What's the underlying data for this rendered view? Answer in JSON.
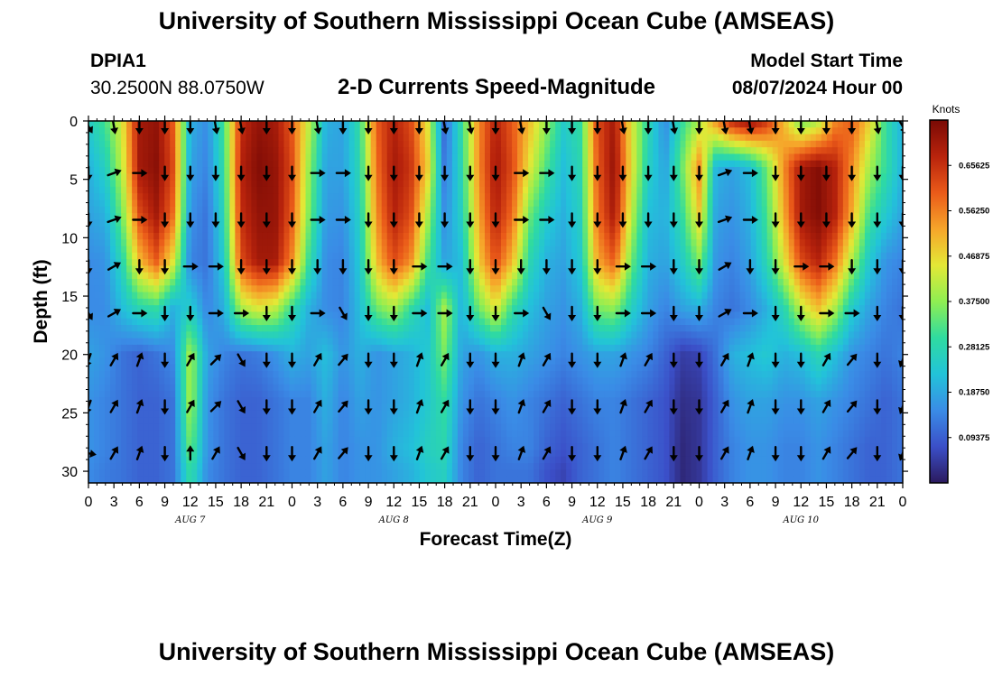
{
  "header": {
    "title_top": "University of Southern Mississippi Ocean Cube (AMSEAS)",
    "title_bottom": "University of Southern Mississippi Ocean Cube (AMSEAS)",
    "station_id": "DPIA1",
    "station_coords": "30.2500N  88.0750W",
    "plot_title": "2-D Currents Speed-Magnitude",
    "model_start_label": "Model Start Time",
    "model_start_value": "08/07/2024 Hour 00"
  },
  "colors": {
    "ramp": [
      "#2b1a5e",
      "#3b4fc8",
      "#3a8ce6",
      "#22c3d9",
      "#2fdba0",
      "#8fee52",
      "#e3e836",
      "#f6a52a",
      "#ea5a19",
      "#b8230c",
      "#7a0a05"
    ],
    "arrow": "#000000"
  },
  "chart_data": {
    "type": "heatmap",
    "title": "2-D Currents Speed-Magnitude",
    "xlabel": "Forecast Time(Z)",
    "ylabel": "Depth (ft)",
    "x_ticks": [
      "0",
      "3",
      "6",
      "9",
      "12",
      "15",
      "18",
      "21",
      "0",
      "3",
      "6",
      "9",
      "12",
      "15",
      "18",
      "21",
      "0",
      "3",
      "6",
      "9",
      "12",
      "15",
      "18",
      "21",
      "0",
      "3",
      "6",
      "9",
      "12",
      "15",
      "18",
      "21",
      "0"
    ],
    "day_labels": [
      "AUG 7",
      "AUG 8",
      "AUG 9",
      "AUG 10"
    ],
    "xlim_hours": [
      0,
      96
    ],
    "y_ticks": [
      0,
      5,
      10,
      15,
      20,
      25,
      30
    ],
    "ylim": [
      0,
      31
    ],
    "colorbar": {
      "unit": "Knots",
      "ticks": [
        "0.65625",
        "0.56250",
        "0.46875",
        "0.37500",
        "0.28125",
        "0.18750",
        "0.09375"
      ],
      "range": [
        0,
        0.75
      ]
    },
    "depth_levels": [
      0,
      4,
      8,
      12,
      16,
      20,
      24,
      28,
      30
    ],
    "speed_knots": [
      [
        0.25,
        0.32,
        0.45,
        0.7,
        0.72,
        0.6,
        0.2,
        0.15,
        0.32,
        0.66,
        0.72,
        0.7,
        0.6,
        0.42,
        0.2,
        0.18,
        0.3,
        0.6,
        0.68,
        0.62,
        0.45,
        0.1,
        0.3,
        0.55,
        0.68,
        0.6,
        0.5,
        0.38,
        0.25,
        0.3,
        0.62,
        0.7,
        0.45,
        0.28,
        0.15,
        0.3,
        0.4,
        0.55,
        0.68,
        0.72,
        0.65,
        0.5,
        0.35,
        0.4,
        0.55,
        0.6,
        0.48,
        0.3,
        0.2
      ],
      [
        0.2,
        0.26,
        0.42,
        0.7,
        0.73,
        0.62,
        0.18,
        0.14,
        0.3,
        0.68,
        0.74,
        0.72,
        0.62,
        0.38,
        0.18,
        0.18,
        0.28,
        0.58,
        0.7,
        0.65,
        0.48,
        0.12,
        0.28,
        0.55,
        0.7,
        0.62,
        0.45,
        0.32,
        0.22,
        0.28,
        0.6,
        0.72,
        0.46,
        0.26,
        0.18,
        0.35,
        0.55,
        0.2,
        0.18,
        0.22,
        0.35,
        0.55,
        0.7,
        0.74,
        0.68,
        0.55,
        0.4,
        0.3,
        0.2
      ],
      [
        0.18,
        0.2,
        0.36,
        0.62,
        0.7,
        0.58,
        0.16,
        0.12,
        0.28,
        0.66,
        0.72,
        0.72,
        0.6,
        0.36,
        0.17,
        0.16,
        0.26,
        0.55,
        0.68,
        0.62,
        0.4,
        0.15,
        0.26,
        0.52,
        0.68,
        0.58,
        0.35,
        0.25,
        0.2,
        0.26,
        0.58,
        0.7,
        0.42,
        0.22,
        0.2,
        0.3,
        0.48,
        0.18,
        0.16,
        0.2,
        0.32,
        0.52,
        0.7,
        0.74,
        0.68,
        0.52,
        0.32,
        0.24,
        0.18
      ],
      [
        0.15,
        0.16,
        0.28,
        0.5,
        0.6,
        0.45,
        0.14,
        0.12,
        0.25,
        0.62,
        0.7,
        0.7,
        0.55,
        0.3,
        0.15,
        0.14,
        0.24,
        0.5,
        0.62,
        0.55,
        0.32,
        0.18,
        0.22,
        0.48,
        0.62,
        0.5,
        0.28,
        0.2,
        0.18,
        0.24,
        0.52,
        0.6,
        0.35,
        0.2,
        0.18,
        0.25,
        0.36,
        0.16,
        0.14,
        0.18,
        0.28,
        0.45,
        0.62,
        0.68,
        0.58,
        0.4,
        0.24,
        0.16,
        0.14
      ],
      [
        0.15,
        0.15,
        0.22,
        0.28,
        0.3,
        0.2,
        0.25,
        0.14,
        0.2,
        0.4,
        0.45,
        0.42,
        0.3,
        0.2,
        0.15,
        0.14,
        0.22,
        0.35,
        0.4,
        0.3,
        0.22,
        0.4,
        0.2,
        0.35,
        0.45,
        0.3,
        0.22,
        0.18,
        0.16,
        0.2,
        0.36,
        0.38,
        0.26,
        0.18,
        0.14,
        0.18,
        0.2,
        0.14,
        0.12,
        0.15,
        0.2,
        0.28,
        0.42,
        0.5,
        0.4,
        0.25,
        0.18,
        0.14,
        0.12
      ],
      [
        0.18,
        0.16,
        0.12,
        0.1,
        0.12,
        0.15,
        0.4,
        0.18,
        0.14,
        0.12,
        0.13,
        0.16,
        0.2,
        0.18,
        0.22,
        0.16,
        0.2,
        0.16,
        0.18,
        0.2,
        0.24,
        0.36,
        0.18,
        0.16,
        0.2,
        0.2,
        0.18,
        0.16,
        0.14,
        0.16,
        0.18,
        0.18,
        0.16,
        0.14,
        0.1,
        0.05,
        0.06,
        0.12,
        0.2,
        0.22,
        0.24,
        0.2,
        0.22,
        0.28,
        0.22,
        0.16,
        0.14,
        0.12,
        0.14
      ],
      [
        0.16,
        0.14,
        0.12,
        0.1,
        0.1,
        0.12,
        0.4,
        0.16,
        0.12,
        0.1,
        0.1,
        0.12,
        0.14,
        0.14,
        0.2,
        0.14,
        0.18,
        0.16,
        0.18,
        0.2,
        0.24,
        0.3,
        0.16,
        0.12,
        0.14,
        0.16,
        0.14,
        0.12,
        0.1,
        0.12,
        0.14,
        0.14,
        0.12,
        0.1,
        0.08,
        0.03,
        0.04,
        0.1,
        0.16,
        0.18,
        0.18,
        0.16,
        0.16,
        0.18,
        0.16,
        0.14,
        0.12,
        0.1,
        0.12
      ],
      [
        0.16,
        0.14,
        0.12,
        0.1,
        0.1,
        0.12,
        0.35,
        0.16,
        0.12,
        0.1,
        0.1,
        0.12,
        0.14,
        0.14,
        0.18,
        0.14,
        0.16,
        0.16,
        0.2,
        0.22,
        0.26,
        0.28,
        0.14,
        0.1,
        0.12,
        0.14,
        0.14,
        0.1,
        0.08,
        0.1,
        0.12,
        0.14,
        0.12,
        0.1,
        0.08,
        0.02,
        0.04,
        0.1,
        0.14,
        0.16,
        0.16,
        0.14,
        0.14,
        0.16,
        0.14,
        0.12,
        0.1,
        0.1,
        0.12
      ],
      [
        0.15,
        0.13,
        0.12,
        0.1,
        0.1,
        0.12,
        0.3,
        0.15,
        0.12,
        0.1,
        0.1,
        0.12,
        0.14,
        0.14,
        0.18,
        0.14,
        0.16,
        0.16,
        0.18,
        0.2,
        0.24,
        0.26,
        0.14,
        0.1,
        0.12,
        0.12,
        0.12,
        0.08,
        0.06,
        0.1,
        0.12,
        0.14,
        0.12,
        0.1,
        0.08,
        0.02,
        0.04,
        0.1,
        0.14,
        0.16,
        0.16,
        0.14,
        0.14,
        0.16,
        0.14,
        0.12,
        0.1,
        0.1,
        0.12
      ]
    ],
    "arrow_depths": [
      0,
      4,
      8,
      12,
      16,
      20,
      24,
      28
    ],
    "arrow_hours": [
      0,
      3,
      6,
      9,
      12,
      15,
      18,
      21,
      24,
      27,
      30,
      33,
      36,
      39,
      42,
      45,
      48,
      51,
      54,
      57,
      60,
      63,
      66,
      69,
      72,
      75,
      78,
      81,
      84,
      87,
      90,
      93,
      96
    ],
    "arrow_directions_deg": [
      [
        150,
        170,
        180,
        180,
        180,
        170,
        170,
        180,
        180,
        170,
        180,
        180,
        180,
        180,
        170,
        170,
        180,
        170,
        180,
        180,
        180,
        170,
        180,
        170,
        180,
        170,
        170,
        180,
        180,
        180,
        180,
        170,
        150
      ],
      [
        180,
        70,
        90,
        180,
        180,
        180,
        180,
        180,
        180,
        90,
        90,
        180,
        180,
        180,
        180,
        180,
        180,
        90,
        90,
        180,
        180,
        180,
        180,
        180,
        180,
        70,
        90,
        180,
        180,
        180,
        180,
        180,
        180
      ],
      [
        180,
        70,
        90,
        180,
        180,
        180,
        180,
        180,
        180,
        90,
        90,
        180,
        180,
        180,
        180,
        180,
        180,
        90,
        90,
        180,
        180,
        180,
        180,
        180,
        180,
        70,
        90,
        180,
        180,
        180,
        180,
        180,
        180
      ],
      [
        180,
        60,
        180,
        180,
        90,
        90,
        180,
        180,
        180,
        180,
        180,
        180,
        180,
        90,
        90,
        180,
        180,
        180,
        180,
        180,
        180,
        90,
        90,
        180,
        180,
        60,
        180,
        180,
        90,
        90,
        180,
        180,
        180
      ],
      [
        150,
        60,
        90,
        180,
        180,
        90,
        90,
        180,
        180,
        90,
        150,
        180,
        180,
        90,
        90,
        180,
        180,
        90,
        150,
        180,
        180,
        90,
        90,
        180,
        180,
        60,
        90,
        180,
        180,
        90,
        90,
        180,
        180
      ],
      [
        200,
        30,
        20,
        180,
        30,
        45,
        150,
        180,
        180,
        30,
        40,
        180,
        180,
        20,
        30,
        180,
        180,
        20,
        30,
        180,
        180,
        20,
        30,
        180,
        180,
        30,
        20,
        180,
        180,
        30,
        40,
        180,
        200
      ],
      [
        200,
        30,
        20,
        180,
        30,
        45,
        150,
        180,
        180,
        30,
        40,
        180,
        180,
        20,
        30,
        180,
        180,
        20,
        30,
        180,
        180,
        20,
        30,
        180,
        180,
        30,
        20,
        180,
        180,
        30,
        40,
        180,
        200
      ],
      [
        100,
        30,
        20,
        180,
        0,
        30,
        150,
        180,
        180,
        30,
        40,
        180,
        180,
        20,
        30,
        180,
        180,
        20,
        30,
        180,
        180,
        20,
        30,
        180,
        180,
        30,
        20,
        180,
        180,
        30,
        40,
        180,
        200
      ]
    ]
  }
}
